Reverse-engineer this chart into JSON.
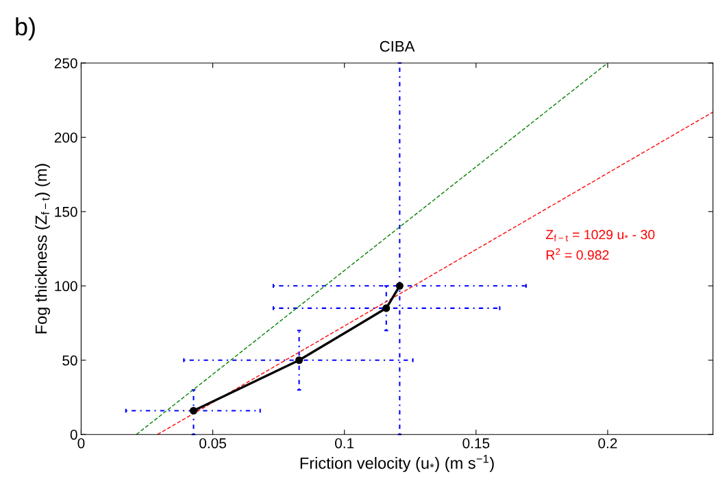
{
  "chart_data": {
    "type": "line",
    "title": "CIBA",
    "xlabel": "Friction velocity (u$_{*}$) (m s$^{−1}$)",
    "ylabel": "Fog thickness (Z$_{f−t}$) (m)",
    "xlim": [
      0,
      0.24
    ],
    "ylim": [
      0,
      250
    ],
    "xticks": [
      0,
      0.05,
      0.1,
      0.15,
      0.2
    ],
    "yticks": [
      0,
      50,
      100,
      150,
      200,
      250
    ],
    "grid": false,
    "legend": false,
    "series": [
      {
        "color": "#000000",
        "marker": "circle",
        "line_style": "solid",
        "x": [
          0.0427,
          0.0828,
          0.1159,
          0.121
        ],
        "values": [
          16,
          50,
          85,
          100
        ],
        "xerrors": [
          [
            0.017,
            0.068
          ],
          [
            0.039,
            0.126
          ],
          [
            0.073,
            0.159
          ],
          [
            0.073,
            0.169
          ]
        ],
        "errors": [
          [
            0,
            30
          ],
          [
            30,
            70
          ],
          [
            70,
            100
          ],
          [
            0,
            250
          ]
        ]
      },
      {
        "color": "#ff0000",
        "marker": "none",
        "line_style": "dashed",
        "x": [
          0.029,
          0.24
        ],
        "values": [
          0,
          217
        ]
      },
      {
        "color": "#008000",
        "marker": "none",
        "line_style": "dashed",
        "x": [
          0.021,
          0.2
        ],
        "values": [
          0,
          250
        ]
      }
    ],
    "annotations": [
      "b)",
      "Z$_{f−t}$ = 1029 u$_{*}$ - 30",
      "R$^{2}$ = 0.982"
    ]
  }
}
